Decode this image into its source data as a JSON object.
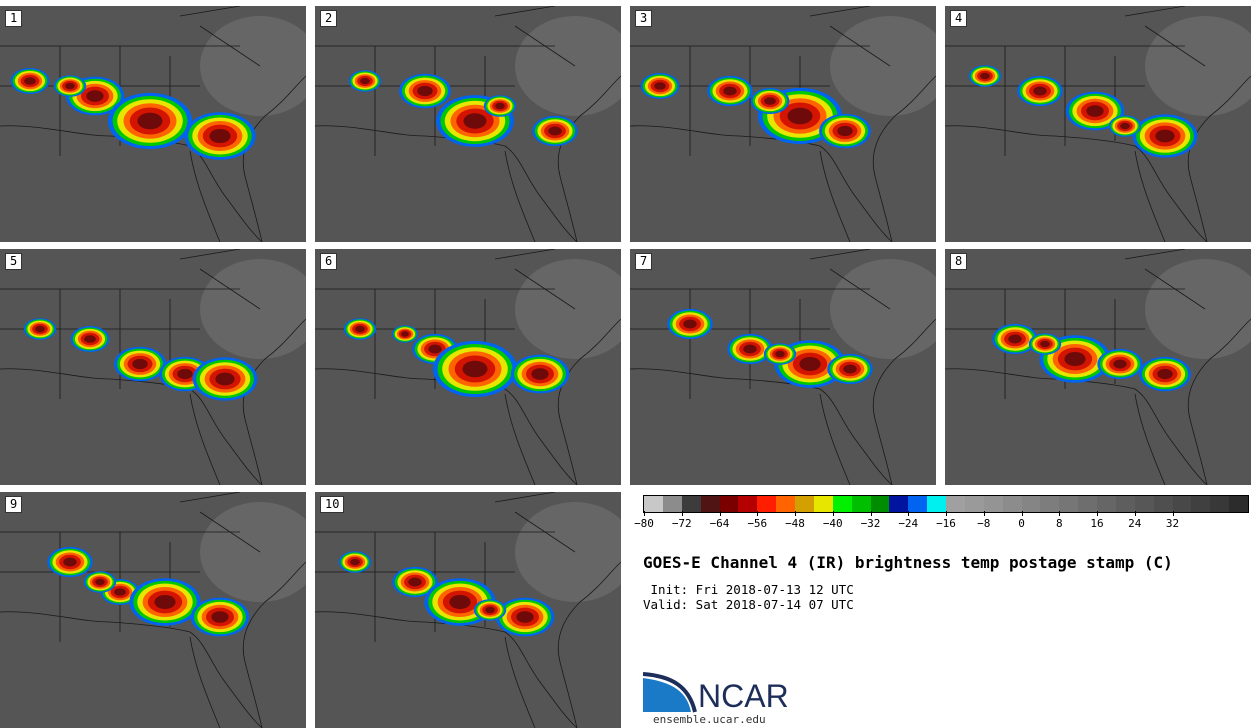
{
  "figure": {
    "title": "GOES-E Channel 4 (IR) brightness temp postage stamp (C)",
    "init": " Init: Fri 2018-07-13 12 UTC",
    "valid": "Valid: Sat 2018-07-14 07 UTC"
  },
  "panels": [
    {
      "label": "1"
    },
    {
      "label": "2"
    },
    {
      "label": "3"
    },
    {
      "label": "4"
    },
    {
      "label": "5"
    },
    {
      "label": "6"
    },
    {
      "label": "7"
    },
    {
      "label": "8"
    },
    {
      "label": "9"
    },
    {
      "label": "10"
    }
  ],
  "colorbar": {
    "unit": "C",
    "colors": [
      "#c8c8c8",
      "#8c8c8c",
      "#3c3c3c",
      "#501414",
      "#7a0000",
      "#b40000",
      "#ff1e00",
      "#ff6400",
      "#d2a000",
      "#e6e600",
      "#00f000",
      "#00be00",
      "#008c00",
      "#0014a0",
      "#0064f0",
      "#00f0f0",
      "#a0a0a0",
      "#9a9a9a",
      "#949494",
      "#8c8c8c",
      "#858585",
      "#7d7d7d",
      "#767676",
      "#6e6e6e",
      "#666666",
      "#5e5e5e",
      "#575757",
      "#4f4f4f",
      "#484848",
      "#404040",
      "#383838",
      "#2c2c2c"
    ],
    "tick_labels": [
      "−80",
      "−72",
      "−64",
      "−56",
      "−48",
      "−40",
      "−32",
      "−24",
      "−16",
      "−8",
      "0",
      "8",
      "16",
      "24",
      "32"
    ]
  },
  "logo": {
    "name": "NCAR",
    "url": "ensemble.ucar.edu",
    "color": "#1e2e5a"
  }
}
